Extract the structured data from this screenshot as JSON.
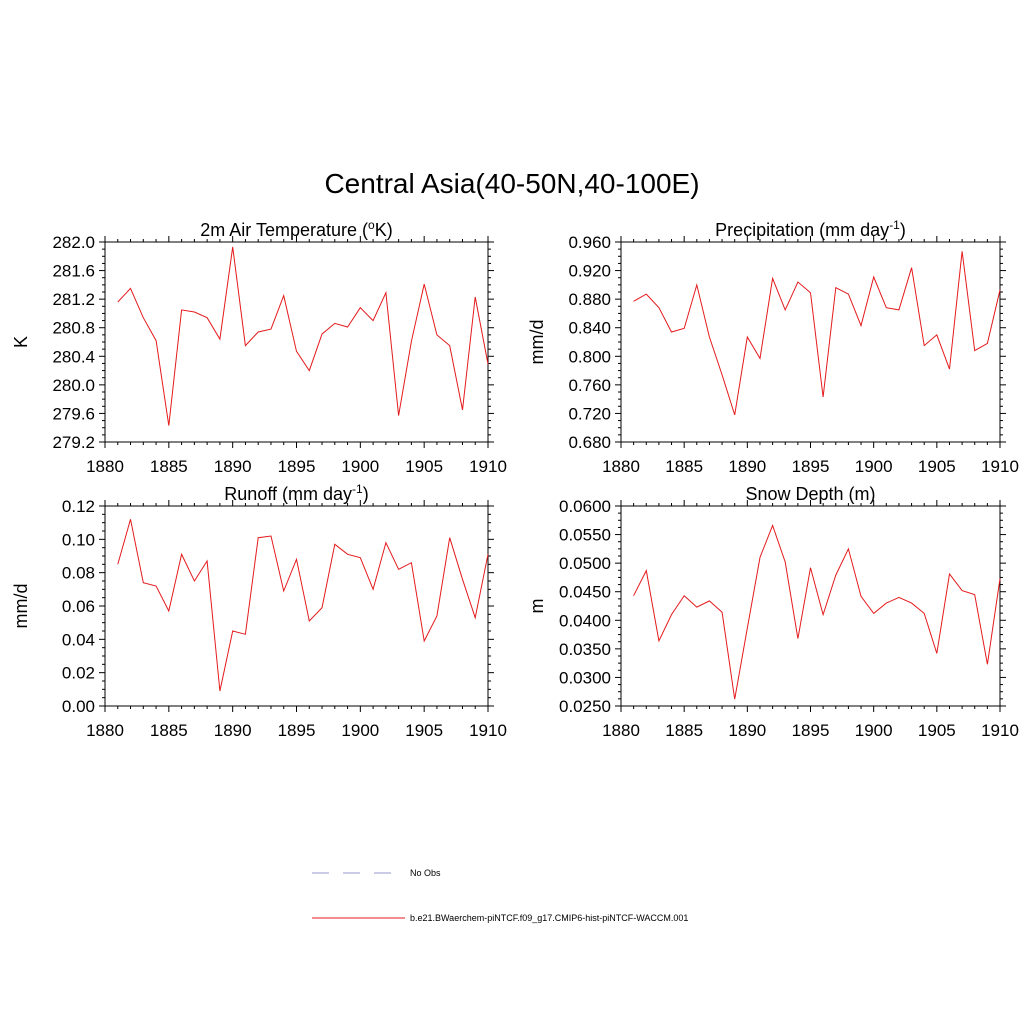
{
  "title": "Central Asia(40-50N,40-100E)",
  "colors": {
    "series": "#e41a1c",
    "obs": "#9999cc",
    "axis": "#000000"
  },
  "legend": {
    "obs_label": "No Obs",
    "series_label": "b.e21.BWaerchem-piNTCF.f09_g17.CMIP6-hist-piNTCF-WACCM.001"
  },
  "chart_data": [
    {
      "type": "line",
      "title_main": "2m Air Temperature (",
      "title_sup1": "o",
      "title_rest": "K)",
      "ylabel": "K",
      "xlim": [
        1880,
        1910
      ],
      "ylim": [
        279.2,
        282.0
      ],
      "yticks": [
        "282.0",
        "281.6",
        "281.2",
        "280.8",
        "280.4",
        "280.0",
        "279.6",
        "279.2"
      ],
      "xticks": [
        "1880",
        "1885",
        "1890",
        "1895",
        "1900",
        "1905",
        "1910"
      ],
      "x": [
        1881,
        1882,
        1883,
        1884,
        1885,
        1886,
        1887,
        1888,
        1889,
        1890,
        1891,
        1892,
        1893,
        1894,
        1895,
        1896,
        1897,
        1898,
        1899,
        1900,
        1901,
        1902,
        1903,
        1904,
        1905,
        1906,
        1907,
        1908,
        1909,
        1910
      ],
      "values": [
        281.16,
        281.35,
        280.94,
        280.62,
        279.43,
        281.05,
        281.02,
        280.94,
        280.64,
        281.93,
        280.55,
        280.74,
        280.78,
        281.25,
        280.47,
        280.2,
        280.71,
        280.86,
        280.81,
        281.08,
        280.9,
        281.29,
        279.57,
        280.61,
        281.41,
        280.7,
        280.55,
        279.65,
        281.23,
        280.29
      ],
      "series": [
        {
          "name": "b.e21.BWaerchem-piNTCF.f09_g17.CMIP6-hist-piNTCF-WACCM.001"
        }
      ]
    },
    {
      "type": "line",
      "title_main": "Precipitation (mm day",
      "title_sup1": "-1",
      "title_rest": ")",
      "ylabel": "mm/d",
      "xlim": [
        1880,
        1910
      ],
      "ylim": [
        0.68,
        0.96
      ],
      "yticks": [
        "0.960",
        "0.920",
        "0.880",
        "0.840",
        "0.800",
        "0.760",
        "0.720",
        "0.680"
      ],
      "xticks": [
        "1880",
        "1885",
        "1890",
        "1895",
        "1900",
        "1905",
        "1910"
      ],
      "x": [
        1881,
        1882,
        1883,
        1884,
        1885,
        1886,
        1887,
        1888,
        1889,
        1890,
        1891,
        1892,
        1893,
        1894,
        1895,
        1896,
        1897,
        1898,
        1899,
        1900,
        1901,
        1902,
        1903,
        1904,
        1905,
        1906,
        1907,
        1908,
        1909,
        1910
      ],
      "values": [
        0.877,
        0.887,
        0.868,
        0.834,
        0.839,
        0.9,
        0.827,
        0.774,
        0.718,
        0.827,
        0.797,
        0.909,
        0.865,
        0.904,
        0.889,
        0.743,
        0.896,
        0.887,
        0.843,
        0.911,
        0.868,
        0.865,
        0.924,
        0.815,
        0.83,
        0.782,
        0.947,
        0.808,
        0.818,
        0.893
      ],
      "series": [
        {
          "name": "b.e21.BWaerchem-piNTCF.f09_g17.CMIP6-hist-piNTCF-WACCM.001"
        }
      ]
    },
    {
      "type": "line",
      "title_main": "Runoff (mm day",
      "title_sup1": "-1",
      "title_rest": ")",
      "ylabel": "mm/d",
      "xlim": [
        1880,
        1910
      ],
      "ylim": [
        0.0,
        0.12
      ],
      "yticks": [
        "0.12",
        "0.10",
        "0.08",
        "0.06",
        "0.04",
        "0.02",
        "0.00"
      ],
      "xticks": [
        "1880",
        "1885",
        "1890",
        "1895",
        "1900",
        "1905",
        "1910"
      ],
      "x": [
        1881,
        1882,
        1883,
        1884,
        1885,
        1886,
        1887,
        1888,
        1889,
        1890,
        1891,
        1892,
        1893,
        1894,
        1895,
        1896,
        1897,
        1898,
        1899,
        1900,
        1901,
        1902,
        1903,
        1904,
        1905,
        1906,
        1907,
        1908,
        1909,
        1910
      ],
      "values": [
        0.085,
        0.112,
        0.074,
        0.072,
        0.057,
        0.091,
        0.075,
        0.087,
        0.009,
        0.045,
        0.043,
        0.101,
        0.102,
        0.069,
        0.088,
        0.051,
        0.059,
        0.097,
        0.091,
        0.089,
        0.07,
        0.098,
        0.082,
        0.086,
        0.039,
        0.054,
        0.101,
        0.076,
        0.053,
        0.091
      ],
      "series": [
        {
          "name": "b.e21.BWaerchem-piNTCF.f09_g17.CMIP6-hist-piNTCF-WACCM.001"
        }
      ]
    },
    {
      "type": "line",
      "title_main": "Snow Depth (m)",
      "title_sup1": "",
      "title_rest": "",
      "ylabel": "m",
      "xlim": [
        1880,
        1910
      ],
      "ylim": [
        0.025,
        0.06
      ],
      "yticks": [
        "0.0600",
        "0.0550",
        "0.0500",
        "0.0450",
        "0.0400",
        "0.0350",
        "0.0300",
        "0.0250"
      ],
      "xticks": [
        "1880",
        "1885",
        "1890",
        "1895",
        "1900",
        "1905",
        "1910"
      ],
      "x": [
        1881,
        1882,
        1883,
        1884,
        1885,
        1886,
        1887,
        1888,
        1889,
        1890,
        1891,
        1892,
        1893,
        1894,
        1895,
        1896,
        1897,
        1898,
        1899,
        1900,
        1901,
        1902,
        1903,
        1904,
        1905,
        1906,
        1907,
        1908,
        1909,
        1910
      ],
      "values": [
        0.0443,
        0.0487,
        0.0364,
        0.041,
        0.0443,
        0.0423,
        0.0434,
        0.0414,
        0.0262,
        0.0386,
        0.051,
        0.0566,
        0.0502,
        0.0368,
        0.0492,
        0.041,
        0.0479,
        0.0525,
        0.0442,
        0.0412,
        0.043,
        0.044,
        0.043,
        0.0412,
        0.0342,
        0.0481,
        0.0452,
        0.0445,
        0.0323,
        0.0473
      ],
      "series": [
        {
          "name": "b.e21.BWaerchem-piNTCF.f09_g17.CMIP6-hist-piNTCF-WACCM.001"
        }
      ]
    }
  ]
}
